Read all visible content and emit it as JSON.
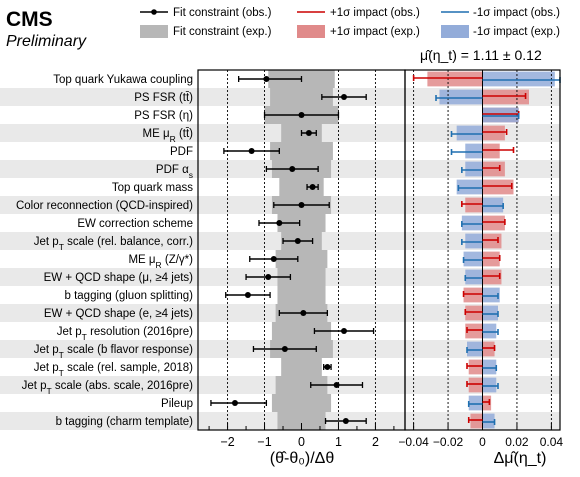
{
  "header": {
    "experiment": "CMS",
    "status": "Preliminary"
  },
  "result_label": "μ̂(η_t) = 1.11 ± 0.12",
  "legend": {
    "obs_label": "Fit constraint (obs.)",
    "exp_label": "Fit constraint (exp.)",
    "plus_obs_label": "+1σ impact (obs.)",
    "plus_exp_label": "+1σ impact (exp.)",
    "minus_obs_label": "-1σ impact (obs.)",
    "minus_exp_label": "-1σ impact (exp.)"
  },
  "colors": {
    "band_exp": "#b7b7b7",
    "point_obs": "#000000",
    "plus_obs": "#cc0000",
    "plus_exp": "#e08a8a",
    "minus_obs": "#1f6fb0",
    "minus_exp": "#93acd9",
    "row_stripe": "#e9e9e9"
  },
  "chart_data": [
    {
      "type": "scatter",
      "name": "pulls",
      "xlabel": "(θ̂-θ₀)/Δθ",
      "xlim": [
        -2.8,
        2.8
      ],
      "xticks": [
        -2,
        -1,
        0,
        1,
        2
      ],
      "nuisances": [
        {
          "label": "Top quark Yukawa coupling",
          "pull": -0.95,
          "err_lo": 0.75,
          "err_hi": 0.95,
          "exp": 0.9
        },
        {
          "label": "PS FSR (tt̄)",
          "pull": 1.15,
          "err_lo": 0.6,
          "err_hi": 0.6,
          "exp": 0.85
        },
        {
          "label": "PS FSR (η)",
          "pull": 0.0,
          "err_lo": 1.0,
          "err_hi": 1.0,
          "exp": 1.0
        },
        {
          "label": "ME μ_R (tt̄)",
          "pull": 0.2,
          "err_lo": 0.2,
          "err_hi": 0.2,
          "exp": 0.55
        },
        {
          "label": "PDF",
          "pull": -1.35,
          "err_lo": 0.75,
          "err_hi": 0.75,
          "exp": 0.85
        },
        {
          "label": "PDF α_s",
          "pull": -0.25,
          "err_lo": 0.7,
          "err_hi": 0.7,
          "exp": 0.8
        },
        {
          "label": "Top quark mass",
          "pull": 0.3,
          "err_lo": 0.15,
          "err_hi": 0.15,
          "exp": 0.6
        },
        {
          "label": "Color reconnection (QCD-inspired)",
          "pull": 0.0,
          "err_lo": 0.75,
          "err_hi": 0.75,
          "exp": 0.8
        },
        {
          "label": "EW correction scheme",
          "pull": -0.6,
          "err_lo": 0.55,
          "err_hi": 0.55,
          "exp": 0.65
        },
        {
          "label": "Jet p_T scale (rel. balance, corr.)",
          "pull": -0.1,
          "err_lo": 0.4,
          "err_hi": 0.4,
          "exp": 0.55
        },
        {
          "label": "ME μ_R (Z/γ*)",
          "pull": -0.75,
          "err_lo": 0.65,
          "err_hi": 0.65,
          "exp": 0.7
        },
        {
          "label": "EW + QCD shape (μ, ≥4 jets)",
          "pull": -0.9,
          "err_lo": 0.6,
          "err_hi": 0.6,
          "exp": 0.65
        },
        {
          "label": "b tagging (gluon splitting)",
          "pull": -1.45,
          "err_lo": 0.6,
          "err_hi": 0.6,
          "exp": 0.65
        },
        {
          "label": "EW + QCD shape (e, ≥4 jets)",
          "pull": 0.05,
          "err_lo": 0.65,
          "err_hi": 0.65,
          "exp": 0.7
        },
        {
          "label": "Jet p_T resolution (2016pre)",
          "pull": 1.15,
          "err_lo": 0.8,
          "err_hi": 0.8,
          "exp": 0.8
        },
        {
          "label": "Jet p_T scale (b flavor response)",
          "pull": -0.45,
          "err_lo": 0.85,
          "err_hi": 0.85,
          "exp": 0.85
        },
        {
          "label": "Jet p_T scale (rel. sample, 2018)",
          "pull": 0.7,
          "err_lo": 0.1,
          "err_hi": 0.1,
          "exp": 0.55
        },
        {
          "label": "Jet p_T scale (abs. scale, 2016pre)",
          "pull": 0.95,
          "err_lo": 0.7,
          "err_hi": 0.7,
          "exp": 0.7
        },
        {
          "label": "Pileup",
          "pull": -1.8,
          "err_lo": 0.65,
          "err_hi": 0.85,
          "exp": 0.8
        },
        {
          "label": "b tagging (charm template)",
          "pull": 1.2,
          "err_lo": 0.55,
          "err_hi": 0.55,
          "exp": 0.65
        }
      ]
    },
    {
      "type": "bar",
      "name": "impacts",
      "xlabel": "Δμ̂(η_t)",
      "xlim": [
        -0.045,
        0.045
      ],
      "xticks": [
        -0.04,
        -0.02,
        0,
        0.02,
        0.04
      ],
      "xticklabels": [
        "−0.04",
        "−0.02",
        "0",
        "0.02",
        "0.04"
      ],
      "impacts": [
        {
          "plus_obs": -0.04,
          "plus_exp": -0.032,
          "minus_obs": 0.045,
          "minus_exp": 0.042
        },
        {
          "plus_obs": 0.025,
          "plus_exp": 0.027,
          "minus_obs": -0.027,
          "minus_exp": -0.025
        },
        {
          "plus_obs": 0.021,
          "plus_exp": 0.021,
          "minus_obs": 0.021,
          "minus_exp": 0.021
        },
        {
          "plus_obs": 0.014,
          "plus_exp": 0.013,
          "minus_obs": -0.018,
          "minus_exp": -0.015
        },
        {
          "plus_obs": 0.018,
          "plus_exp": 0.01,
          "minus_obs": -0.018,
          "minus_exp": -0.01
        },
        {
          "plus_obs": 0.01,
          "plus_exp": 0.013,
          "minus_obs": -0.012,
          "minus_exp": -0.01
        },
        {
          "plus_obs": 0.017,
          "plus_exp": 0.018,
          "minus_obs": -0.014,
          "minus_exp": -0.015
        },
        {
          "plus_obs": -0.012,
          "plus_exp": -0.01,
          "minus_obs": 0.012,
          "minus_exp": 0.012
        },
        {
          "plus_obs": 0.013,
          "plus_exp": 0.013,
          "minus_obs": -0.012,
          "minus_exp": -0.012
        },
        {
          "plus_obs": 0.009,
          "plus_exp": 0.011,
          "minus_obs": -0.012,
          "minus_exp": -0.01
        },
        {
          "plus_obs": 0.01,
          "plus_exp": 0.01,
          "minus_obs": -0.011,
          "minus_exp": -0.011
        },
        {
          "plus_obs": 0.01,
          "plus_exp": 0.011,
          "minus_obs": -0.01,
          "minus_exp": -0.01
        },
        {
          "plus_obs": -0.011,
          "plus_exp": -0.011,
          "minus_obs": 0.009,
          "minus_exp": 0.01
        },
        {
          "plus_obs": -0.01,
          "plus_exp": -0.01,
          "minus_obs": 0.009,
          "minus_exp": 0.009
        },
        {
          "plus_obs": -0.009,
          "plus_exp": -0.01,
          "minus_obs": 0.009,
          "minus_exp": 0.008
        },
        {
          "plus_obs": 0.007,
          "plus_exp": 0.007,
          "minus_obs": -0.009,
          "minus_exp": -0.009
        },
        {
          "plus_obs": -0.009,
          "plus_exp": -0.008,
          "minus_obs": 0.008,
          "minus_exp": 0.008
        },
        {
          "plus_obs": -0.009,
          "plus_exp": -0.008,
          "minus_obs": 0.009,
          "minus_exp": 0.008
        },
        {
          "plus_obs": 0.004,
          "plus_exp": 0.005,
          "minus_obs": -0.008,
          "minus_exp": -0.008
        },
        {
          "plus_obs": -0.008,
          "plus_exp": -0.007,
          "minus_obs": 0.007,
          "minus_exp": 0.007
        }
      ]
    }
  ]
}
